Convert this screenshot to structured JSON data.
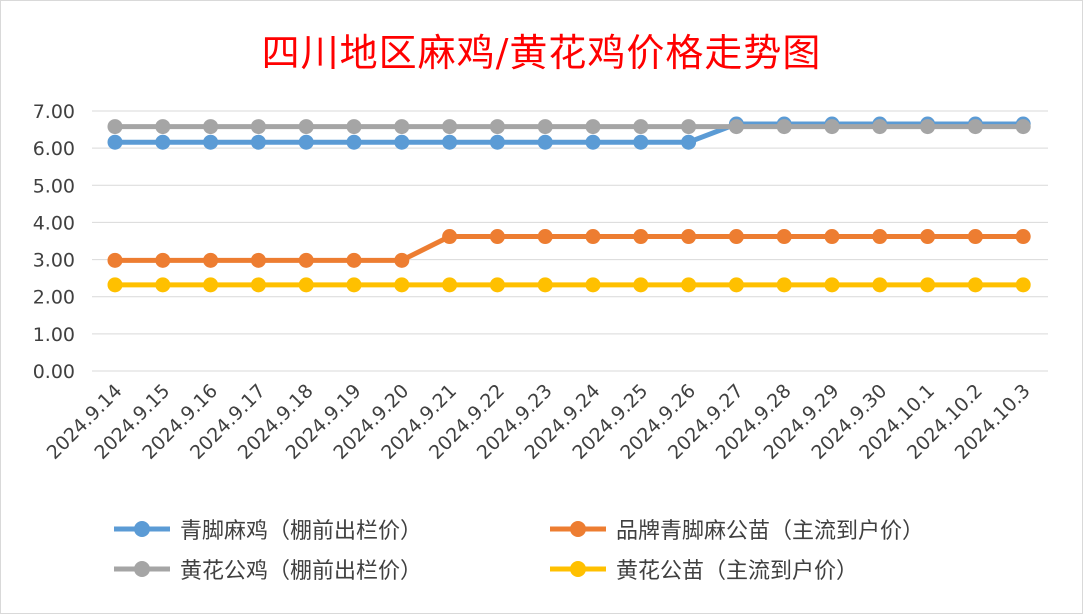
{
  "chart_data": {
    "type": "line",
    "title": "四川地区麻鸡/黄花鸡价格走势图",
    "categories": [
      "2024.9.14",
      "2024.9.15",
      "2024.9.16",
      "2024.9.17",
      "2024.9.18",
      "2024.9.19",
      "2024.9.20",
      "2024.9.21",
      "2024.9.22",
      "2024.9.23",
      "2024.9.24",
      "2024.9.25",
      "2024.9.26",
      "2024.9.27",
      "2024.9.28",
      "2024.9.29",
      "2024.9.30",
      "2024.10.1",
      "2024.10.2",
      "2024.10.3"
    ],
    "ylim": [
      0,
      7
    ],
    "yticks": [
      "0.00",
      "1.00",
      "2.00",
      "3.00",
      "4.00",
      "5.00",
      "6.00",
      "7.00"
    ],
    "grid": true,
    "legend_position": "bottom",
    "series": [
      {
        "name": "青脚麻鸡（棚前出栏价）",
        "color": "#5b9bd5",
        "values": [
          6.16,
          6.16,
          6.16,
          6.16,
          6.16,
          6.16,
          6.16,
          6.16,
          6.16,
          6.16,
          6.16,
          6.16,
          6.16,
          6.65,
          6.65,
          6.65,
          6.65,
          6.65,
          6.65,
          6.65
        ]
      },
      {
        "name": "品牌青脚麻公苗（主流到户价）",
        "color": "#ed7d31",
        "values": [
          2.98,
          2.98,
          2.98,
          2.98,
          2.98,
          2.98,
          2.98,
          3.62,
          3.62,
          3.62,
          3.62,
          3.62,
          3.62,
          3.62,
          3.62,
          3.62,
          3.62,
          3.62,
          3.62,
          3.62
        ]
      },
      {
        "name": "黄花公鸡（棚前出栏价）",
        "color": "#a5a5a5",
        "values": [
          6.58,
          6.58,
          6.58,
          6.58,
          6.58,
          6.58,
          6.58,
          6.58,
          6.58,
          6.58,
          6.58,
          6.58,
          6.58,
          6.58,
          6.58,
          6.58,
          6.58,
          6.58,
          6.58,
          6.58
        ]
      },
      {
        "name": "黄花公苗（主流到户价）",
        "color": "#ffc000",
        "values": [
          2.32,
          2.32,
          2.32,
          2.32,
          2.32,
          2.32,
          2.32,
          2.32,
          2.32,
          2.32,
          2.32,
          2.32,
          2.32,
          2.32,
          2.32,
          2.32,
          2.32,
          2.32,
          2.32,
          2.32
        ]
      }
    ]
  }
}
